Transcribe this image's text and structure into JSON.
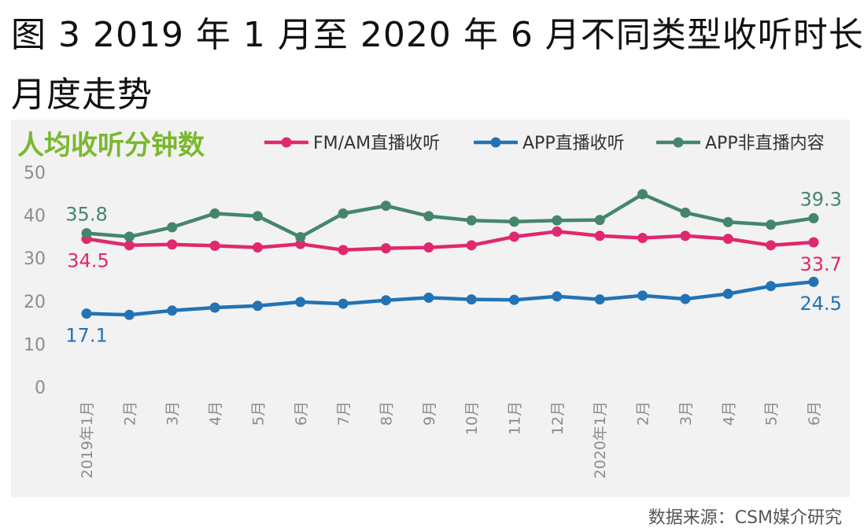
{
  "title": {
    "line1": "图 3 2019 年 1 月至 2020 年 6 月不同类型收听时长",
    "line2": "月度走势"
  },
  "source": "数据来源：CSM媒介研究",
  "colors": {
    "fm": "#e0286e",
    "app_live": "#2273b5",
    "app_nonlive": "#45866a",
    "subtitle": "#7ab82e",
    "axis_text": "#8c8c8c",
    "panel_bg": "#f2f2f2"
  },
  "chart_data": {
    "type": "line",
    "title": "人均收听分钟数",
    "xlabel": "",
    "ylabel": "",
    "ylim": [
      0,
      50
    ],
    "yticks": [
      0,
      10,
      20,
      30,
      40,
      50
    ],
    "categories": [
      "2019年1月",
      "2月",
      "3月",
      "4月",
      "5月",
      "6月",
      "7月",
      "8月",
      "9月",
      "10月",
      "11月",
      "12月",
      "2020年1月",
      "2月",
      "3月",
      "4月",
      "5月",
      "6月"
    ],
    "legend_position": "top",
    "series": [
      {
        "name": "FM/AM直播收听",
        "color": "#e0286e",
        "values": [
          34.5,
          33.0,
          33.2,
          32.9,
          32.5,
          33.3,
          31.9,
          32.3,
          32.5,
          33.0,
          35.0,
          36.2,
          35.2,
          34.7,
          35.2,
          34.5,
          33.0,
          33.7
        ],
        "labels": [
          {
            "index": 0,
            "text": "34.5",
            "pos": "below-left"
          },
          {
            "index": 17,
            "text": "33.7",
            "pos": "below"
          }
        ]
      },
      {
        "name": "APP直播收听",
        "color": "#2273b5",
        "values": [
          17.1,
          16.8,
          17.8,
          18.5,
          18.9,
          19.8,
          19.4,
          20.2,
          20.8,
          20.4,
          20.3,
          21.1,
          20.4,
          21.3,
          20.5,
          21.7,
          23.5,
          24.5
        ],
        "labels": [
          {
            "index": 0,
            "text": "17.1",
            "pos": "below"
          },
          {
            "index": 17,
            "text": "24.5",
            "pos": "below"
          }
        ]
      },
      {
        "name": "APP非直播内容",
        "color": "#45866a",
        "values": [
          35.8,
          35.0,
          37.2,
          40.4,
          39.8,
          34.9,
          40.4,
          42.2,
          39.8,
          38.8,
          38.5,
          38.8,
          38.9,
          44.9,
          40.6,
          38.4,
          37.8,
          39.3
        ],
        "labels": [
          {
            "index": 0,
            "text": "35.8",
            "pos": "above"
          },
          {
            "index": 17,
            "text": "39.3",
            "pos": "above"
          }
        ]
      }
    ]
  }
}
